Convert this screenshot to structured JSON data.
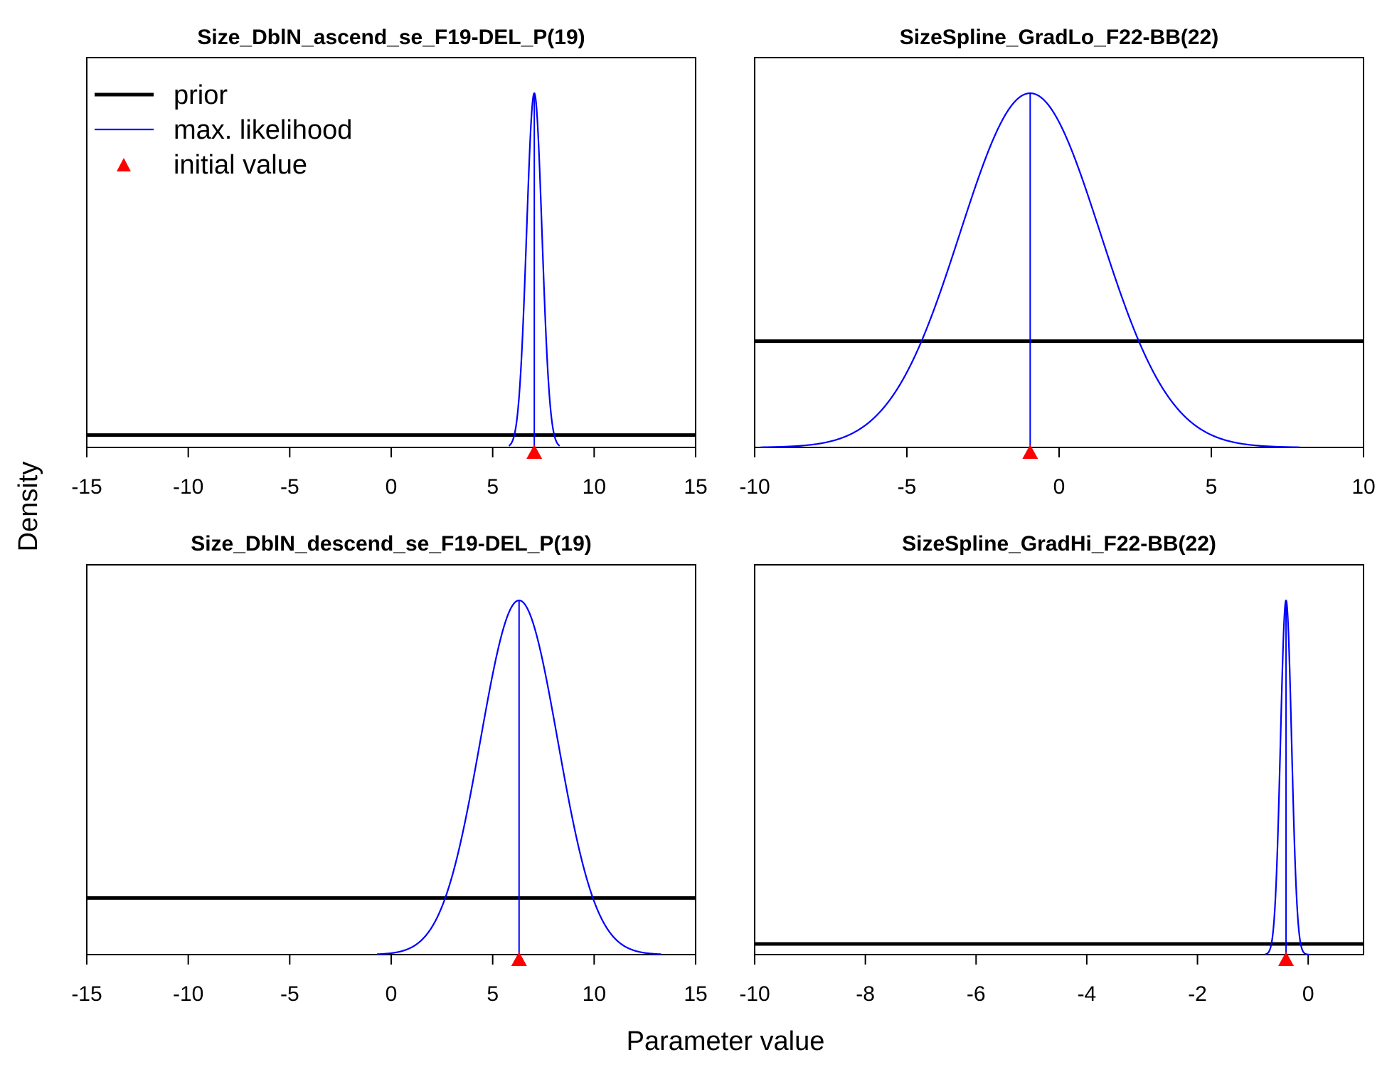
{
  "figure": {
    "ylabel": "Density",
    "xlabel": "Parameter value",
    "legend": {
      "placement": "top-left of first panel",
      "entries": [
        {
          "label": "prior",
          "kind": "line",
          "color": "#000000"
        },
        {
          "label": "max. likelihood",
          "kind": "line",
          "color": "#0000ff"
        },
        {
          "label": "initial value",
          "kind": "triangle",
          "color": "#ff0000"
        }
      ]
    },
    "colors": {
      "prior": "#000000",
      "mle": "#0000ff",
      "initial": "#ff0000"
    }
  },
  "chart_data": [
    {
      "type": "line",
      "title": "Size_DblN_ascend_se_F19-DEL_P(19)",
      "xlim": [
        -15,
        15
      ],
      "xticks": [
        -15,
        -10,
        -5,
        0,
        5,
        10,
        15
      ],
      "mle_mean": 7.05,
      "mle_sd": 0.38,
      "initial_value": 7.05,
      "prior_rel_height": 0.035,
      "curve_range": [
        5.8,
        8.3
      ]
    },
    {
      "type": "line",
      "title": "SizeSpline_GradLo_F22-BB(22)",
      "xlim": [
        -10,
        10
      ],
      "xticks": [
        -10,
        -5,
        0,
        5,
        10
      ],
      "mle_mean": -0.95,
      "mle_sd": 2.3,
      "initial_value": -0.95,
      "prior_rel_height": 0.3,
      "curve_range": [
        -9.8,
        7.9
      ]
    },
    {
      "type": "line",
      "title": "Size_DblN_descend_se_F19-DEL_P(19)",
      "xlim": [
        -15,
        15
      ],
      "xticks": [
        -15,
        -10,
        -5,
        0,
        5,
        10,
        15
      ],
      "mle_mean": 6.3,
      "mle_sd": 1.9,
      "initial_value": 6.3,
      "prior_rel_height": 0.16,
      "curve_range": [
        -0.7,
        13.3
      ]
    },
    {
      "type": "line",
      "title": "SizeSpline_GradHi_F22-BB(22)",
      "xlim": [
        -10,
        1
      ],
      "xticks": [
        -10,
        -8,
        -6,
        -4,
        -2,
        0
      ],
      "mle_mean": -0.4,
      "mle_sd": 0.1,
      "initial_value": -0.4,
      "prior_rel_height": 0.03,
      "curve_range": [
        -0.78,
        0.02
      ]
    }
  ]
}
